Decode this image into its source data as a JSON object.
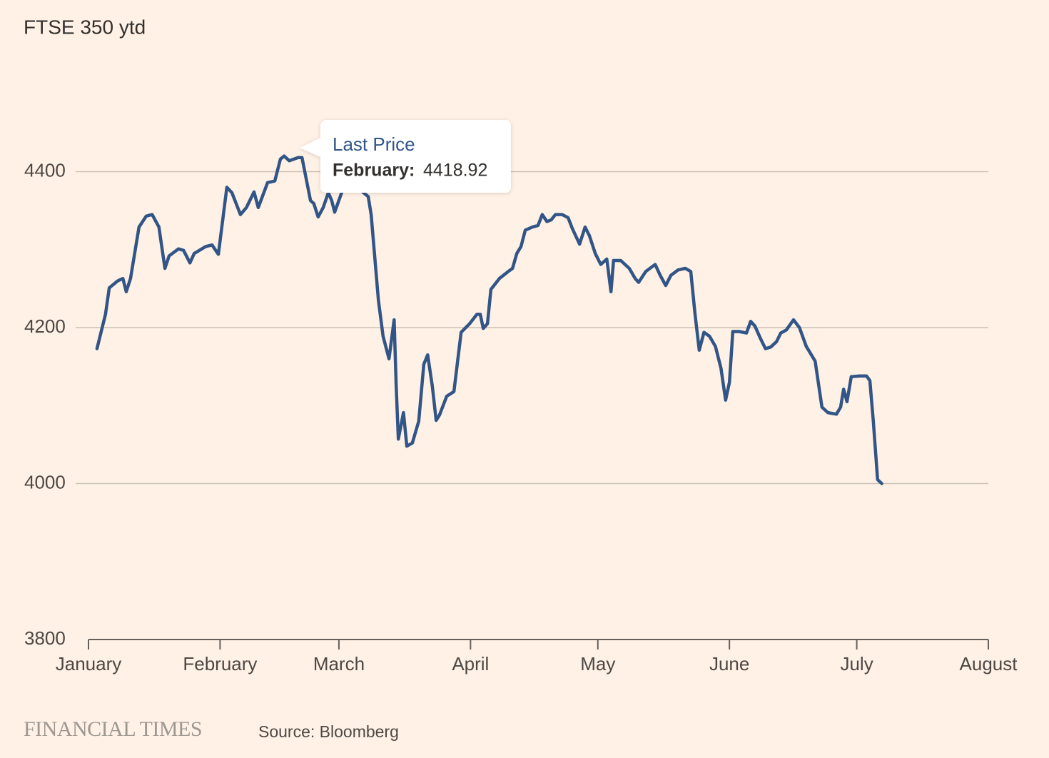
{
  "chart_data": {
    "type": "line",
    "title": "FTSE 350 ytd",
    "x": [
      2.0,
      4.0,
      4.9,
      6.9,
      8.1,
      8.9,
      9.9,
      11.9,
      13.6,
      15.0,
      16.6,
      18.0,
      19.0,
      21.2,
      22.4,
      23.9,
      24.9,
      27.6,
      29.1,
      30.6,
      32.6,
      33.8,
      35.8,
      37.2,
      39.0,
      40.0,
      42.2,
      43.9,
      45.2,
      46.1,
      47.3,
      49.4,
      50.3,
      52.3,
      53.1,
      54.1,
      55.3,
      56.5,
      57.3,
      58.0,
      59.9,
      62.4,
      64.6,
      65.9,
      66.6,
      68.3,
      69.4,
      70.8,
      71.5,
      72.0,
      72.5,
      73.0,
      74.2,
      75.0,
      76.3,
      77.8,
      79.0,
      79.9,
      81.0,
      81.9,
      82.7,
      84.4,
      86.1,
      87.8,
      89.8,
      91.5,
      92.3,
      93.0,
      94.0,
      94.8,
      96.8,
      98.9,
      99.9,
      100.9,
      101.9,
      102.9,
      104.6,
      105.9,
      106.9,
      108.0,
      109.0,
      110.0,
      111.6,
      113.0,
      114.0,
      115.7,
      117.0,
      118.0,
      119.4,
      120.7,
      122.1,
      123.1,
      123.7,
      125.4,
      127.4,
      128.8,
      129.6,
      131.3,
      133.5,
      134.7,
      136.0,
      137.2,
      138.9,
      140.6,
      141.9,
      142.9,
      143.9,
      145.0,
      146.3,
      147.7,
      149.0,
      150.1,
      151.0,
      151.8,
      153.3,
      155.0,
      156.0,
      157.0,
      158.4,
      159.5,
      160.7,
      162.1,
      163.1,
      164.4,
      166.1,
      167.5,
      169.1,
      171.2,
      172.8,
      174.2,
      176.2,
      177.2,
      177.9,
      178.7,
      179.7,
      181.7,
      183.3,
      184.1,
      184.9,
      185.9,
      186.9
    ],
    "values": [
      4173,
      4217,
      4251,
      4260,
      4263,
      4246,
      4263,
      4329,
      4343,
      4345,
      4329,
      4276,
      4292,
      4301,
      4299,
      4283,
      4295,
      4304,
      4306,
      4294,
      4380,
      4373,
      4345,
      4354,
      4374,
      4354,
      4386,
      4388,
      4416,
      4420,
      4414,
      4418,
      4418,
      4363,
      4359,
      4342,
      4354,
      4373,
      4363,
      4348,
      4377,
      4386,
      4374,
      4368,
      4345,
      4235,
      4189,
      4160,
      4189,
      4210,
      4125,
      4057,
      4091,
      4048,
      4052,
      4080,
      4153,
      4165,
      4125,
      4081,
      4088,
      4112,
      4118,
      4194,
      4205,
      4217,
      4217,
      4199,
      4205,
      4249,
      4263,
      4272,
      4276,
      4295,
      4304,
      4325,
      4329,
      4331,
      4345,
      4336,
      4338,
      4345,
      4345,
      4341,
      4327,
      4307,
      4329,
      4318,
      4295,
      4281,
      4288,
      4246,
      4286,
      4286,
      4276,
      4263,
      4258,
      4272,
      4281,
      4267,
      4254,
      4267,
      4274,
      4276,
      4272,
      4217,
      4171,
      4194,
      4189,
      4176,
      4148,
      4107,
      4130,
      4195,
      4195,
      4193,
      4208,
      4202,
      4185,
      4173,
      4175,
      4182,
      4193,
      4197,
      4210,
      4200,
      4176,
      4157,
      4098,
      4091,
      4089,
      4098,
      4121,
      4105,
      4137,
      4138,
      4138,
      4132,
      4080,
      4005,
      4000
    ],
    "color": "#325587",
    "xlim": [
      0,
      212
    ],
    "xticks": [
      {
        "value": 0,
        "label": "January"
      },
      {
        "value": 31,
        "label": "February"
      },
      {
        "value": 59,
        "label": "March"
      },
      {
        "value": 90,
        "label": "April"
      },
      {
        "value": 120,
        "label": "May"
      },
      {
        "value": 151,
        "label": "June"
      },
      {
        "value": 181,
        "label": "July"
      },
      {
        "value": 212,
        "label": "August"
      }
    ],
    "ylim": [
      3800,
      4600
    ],
    "yticks": [
      3800,
      4000,
      4200,
      4400
    ],
    "grid": true,
    "tooltip": {
      "title": "Last Price",
      "label": "February:",
      "value": 4418.92
    },
    "brand": "FINANCIAL TIMES",
    "source": "Source: Bloomberg"
  }
}
